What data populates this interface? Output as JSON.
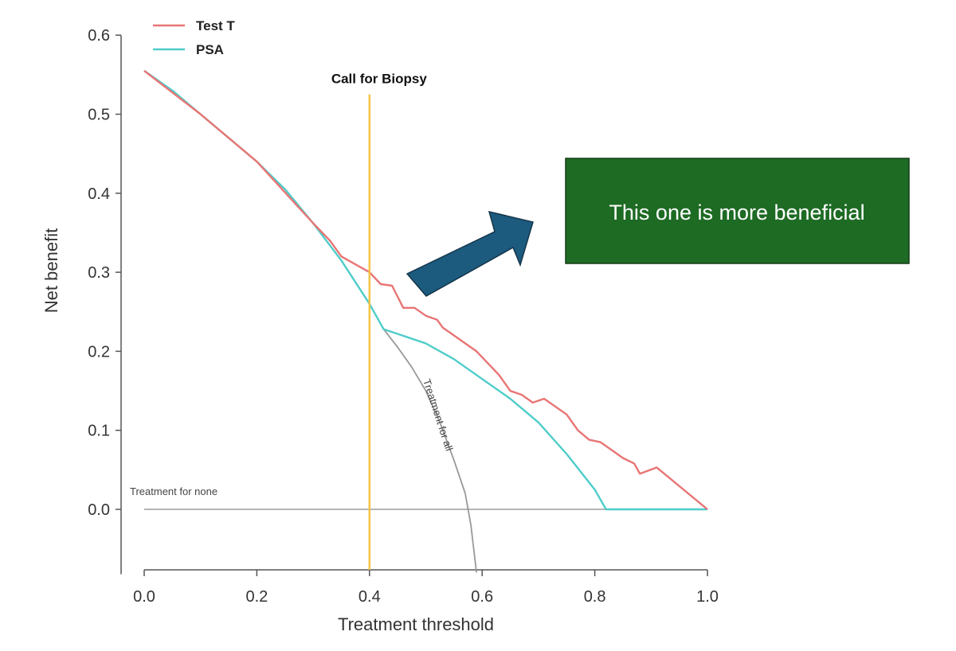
{
  "chart_data": {
    "type": "line",
    "title": "",
    "xlabel": "Treatment threshold",
    "ylabel": "Net benefit",
    "xlim": [
      0.0,
      1.0
    ],
    "ylim": [
      -0.08,
      0.6
    ],
    "xticks": [
      "0.0",
      "0.2",
      "0.4",
      "0.6",
      "0.8",
      "1.0"
    ],
    "yticks": [
      "0.0",
      "0.1",
      "0.2",
      "0.3",
      "0.4",
      "0.5",
      "0.6"
    ],
    "grid": false,
    "legend": {
      "position": "top-left"
    },
    "series": [
      {
        "name": "Test T",
        "color": "#e87575",
        "points": [
          [
            0.0,
            0.555
          ],
          [
            0.1,
            0.5
          ],
          [
            0.2,
            0.44
          ],
          [
            0.3,
            0.362
          ],
          [
            0.33,
            0.34
          ],
          [
            0.35,
            0.32
          ],
          [
            0.38,
            0.308
          ],
          [
            0.4,
            0.3
          ],
          [
            0.42,
            0.285
          ],
          [
            0.44,
            0.283
          ],
          [
            0.46,
            0.255
          ],
          [
            0.48,
            0.255
          ],
          [
            0.5,
            0.245
          ],
          [
            0.52,
            0.24
          ],
          [
            0.53,
            0.23
          ],
          [
            0.55,
            0.22
          ],
          [
            0.57,
            0.21
          ],
          [
            0.59,
            0.2
          ],
          [
            0.61,
            0.185
          ],
          [
            0.63,
            0.17
          ],
          [
            0.65,
            0.15
          ],
          [
            0.67,
            0.145
          ],
          [
            0.69,
            0.135
          ],
          [
            0.71,
            0.14
          ],
          [
            0.73,
            0.13
          ],
          [
            0.75,
            0.12
          ],
          [
            0.77,
            0.1
          ],
          [
            0.79,
            0.088
          ],
          [
            0.81,
            0.085
          ],
          [
            0.83,
            0.075
          ],
          [
            0.85,
            0.065
          ],
          [
            0.87,
            0.058
          ],
          [
            0.88,
            0.045
          ],
          [
            0.91,
            0.053
          ],
          [
            1.0,
            0.0
          ]
        ]
      },
      {
        "name": "PSA",
        "color": "#4ecdc9",
        "points": [
          [
            0.0,
            0.555
          ],
          [
            0.05,
            0.53
          ],
          [
            0.1,
            0.5
          ],
          [
            0.15,
            0.47
          ],
          [
            0.2,
            0.44
          ],
          [
            0.25,
            0.405
          ],
          [
            0.3,
            0.362
          ],
          [
            0.35,
            0.315
          ],
          [
            0.4,
            0.26
          ],
          [
            0.425,
            0.228
          ],
          [
            0.5,
            0.21
          ],
          [
            0.55,
            0.19
          ],
          [
            0.6,
            0.165
          ],
          [
            0.65,
            0.14
          ],
          [
            0.7,
            0.11
          ],
          [
            0.75,
            0.07
          ],
          [
            0.8,
            0.025
          ],
          [
            0.82,
            0.0
          ],
          [
            1.0,
            0.0
          ]
        ]
      },
      {
        "name": "Treatment for all",
        "color": "#999999",
        "points": [
          [
            0.425,
            0.228
          ],
          [
            0.45,
            0.205
          ],
          [
            0.475,
            0.18
          ],
          [
            0.5,
            0.15
          ],
          [
            0.525,
            0.11
          ],
          [
            0.55,
            0.062
          ],
          [
            0.57,
            0.02
          ],
          [
            0.58,
            -0.02
          ],
          [
            0.59,
            -0.08
          ]
        ]
      },
      {
        "name": "Treatment for none",
        "color": "#aaaaaa",
        "points": [
          [
            0.0,
            0.0
          ],
          [
            1.0,
            0.0
          ]
        ]
      }
    ],
    "reference_line": {
      "label": "Call for Biopsy",
      "x": 0.4,
      "y_top": 0.525,
      "color": "#f5c346"
    },
    "annotations": {
      "treatment_for_none": "Treatment for none",
      "treatment_for_all": "Treatment for all"
    },
    "callout": {
      "text": "This one is more beneficial",
      "box_color": "#1e6b24",
      "arrow_color": "#1c5a7e"
    }
  }
}
